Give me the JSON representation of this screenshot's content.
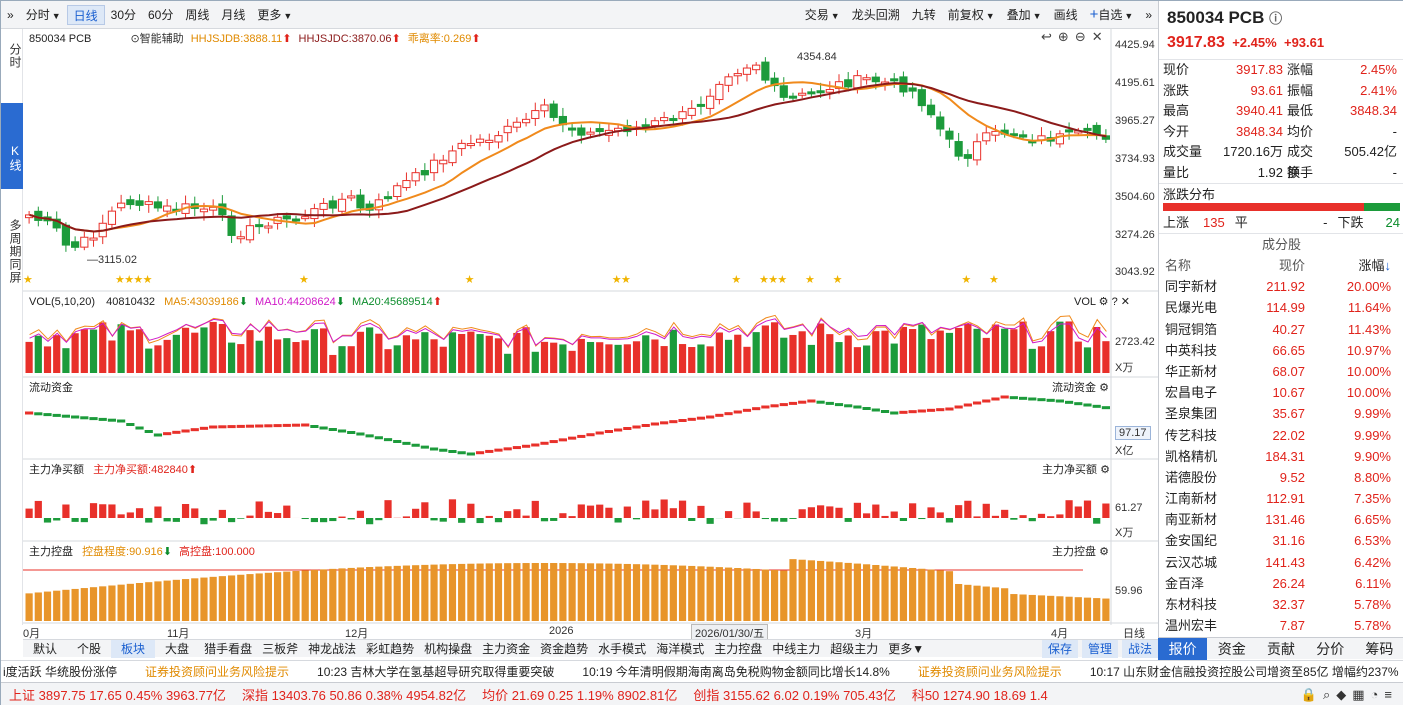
{
  "toolbar": {
    "left": [
      "»",
      "分时",
      "日线",
      "30分",
      "60分",
      "周线",
      "月线",
      "更多"
    ],
    "right": [
      "交易",
      "龙头回溯",
      "九转",
      "前复权",
      "叠加",
      "画线",
      "自选",
      "»"
    ]
  },
  "lefttabs": [
    "分时",
    "K线",
    "多周期同屏"
  ],
  "main": {
    "code": "850034 PCB",
    "assist": "智能辅助",
    "hhjsjdb": "HHJSJDB:3888.11",
    "hhjsjdc": "HHJSJDC:3870.06",
    "deviation": "乖离率:0.269",
    "yticks": [
      "4425.94",
      "4195.61",
      "3965.27",
      "3734.93",
      "3504.60",
      "3274.26",
      "3043.92"
    ],
    "high_label": "4354.84",
    "low_label": "3115.02"
  },
  "vol": {
    "title": "VOL(5,10,20)",
    "value": "40810432",
    "ma5": "MA5:43039186",
    "ma10": "MA10:44208624",
    "ma20": "MA20:45689514",
    "tag": "VOL",
    "ytick": "2723.42",
    "unit": "X万"
  },
  "flow": {
    "title": "流动资金",
    "tag": "流动资金",
    "ytick": "97.17",
    "unit": "X亿"
  },
  "net": {
    "title": "主力净买额",
    "value": "主力净买额:482840",
    "tag": "主力净买额",
    "ytick": "61.27",
    "unit": "X万"
  },
  "ctrl": {
    "title": "主力控盘",
    "degree": "控盘程度:90.916",
    "high": "高控盘:100.000",
    "tag": "主力控盘",
    "ytick": "59.96"
  },
  "dates": [
    "0月",
    "11月",
    "12月",
    "2026",
    "2026/01/30/五",
    "3月",
    "4月"
  ],
  "period": "日线",
  "bottomtabs": [
    "默认",
    "个股",
    "板块",
    "大盘",
    "猎手看盘",
    "三板斧",
    "神龙战法",
    "彩虹趋势",
    "机构操盘",
    "主力资金",
    "资金趋势",
    "水手模式",
    "海洋模式",
    "主力控盘",
    "中线主力",
    "超级主力",
    "更多"
  ],
  "bottomright": [
    "保存",
    "管理",
    "战法"
  ],
  "ticker": [
    "i度活跃 华统股份涨停",
    "证券投资顾问业务风险提示",
    "10:23 吉林大学在氢基超导研究取得重要突破",
    "10:19 今年清明假期海南离岛免税购物金额同比增长14.8%",
    "证券投资顾问业务风险提示",
    "10:17 山东财金信融投资控股公司增资至85亿 增幅约237%"
  ],
  "indices": [
    {
      "name": "上证",
      "v": "3897.75",
      "c": "17.65",
      "p": "0.45%",
      "a": "3963.77亿"
    },
    {
      "name": "深指",
      "v": "13403.76",
      "c": "50.86",
      "p": "0.38%",
      "a": "4954.82亿"
    },
    {
      "name": "均价",
      "v": "21.69",
      "c": "0.25",
      "p": "1.19%",
      "a": "8902.81亿"
    },
    {
      "name": "创指",
      "v": "3155.62",
      "c": "6.02",
      "p": "0.19%",
      "a": "705.43亿"
    },
    {
      "name": "科50",
      "v": "1274.90",
      "c": "18.69",
      "p": "1.4"
    }
  ],
  "right": {
    "title": "850034 PCB",
    "price": "3917.83",
    "chg_pct": "+2.45%",
    "chg": "+93.61",
    "quotes": [
      [
        "现价",
        "3917.83",
        "涨幅",
        "2.45%"
      ],
      [
        "涨跌",
        "93.61",
        "振幅",
        "2.41%"
      ],
      [
        "最高",
        "3940.41",
        "最低",
        "3848.34"
      ],
      [
        "今开",
        "3848.34",
        "均价",
        "-"
      ],
      [
        "成交量",
        "1720.16万",
        "成交额",
        "505.42亿"
      ],
      [
        "量比",
        "1.92",
        "换手",
        "-"
      ]
    ],
    "dist_title": "涨跌分布",
    "up_label": "上涨",
    "up": "135",
    "flat_label": "平",
    "flat": "-",
    "down_label": "下跌",
    "down": "24",
    "comp_title": "成分股",
    "col_name": "名称",
    "col_price": "现价",
    "col_chg": "涨幅",
    "stocks": [
      [
        "同宇新材",
        "211.92",
        "20.00%"
      ],
      [
        "民爆光电",
        "114.99",
        "11.64%"
      ],
      [
        "铜冠铜箔",
        "40.27",
        "11.43%"
      ],
      [
        "中英科技",
        "66.65",
        "10.97%"
      ],
      [
        "华正新材",
        "68.07",
        "10.00%"
      ],
      [
        "宏昌电子",
        "10.67",
        "10.00%"
      ],
      [
        "圣泉集团",
        "35.67",
        "9.99%"
      ],
      [
        "传艺科技",
        "22.02",
        "9.99%"
      ],
      [
        "凯格精机",
        "184.31",
        "9.90%"
      ],
      [
        "诺德股份",
        "9.52",
        "8.80%"
      ],
      [
        "江南新材",
        "112.91",
        "7.35%"
      ],
      [
        "南亚新材",
        "131.46",
        "6.65%"
      ],
      [
        "金安国纪",
        "31.16",
        "6.53%"
      ],
      [
        "云汉芯城",
        "141.43",
        "6.42%"
      ],
      [
        "金百泽",
        "26.24",
        "6.11%"
      ],
      [
        "东材科技",
        "32.37",
        "5.78%"
      ],
      [
        "温州宏丰",
        "7.87",
        "5.78%"
      ]
    ],
    "tabs": [
      "报价",
      "资金",
      "贡献",
      "分价",
      "筹码"
    ]
  },
  "colors": {
    "up": "#e8302a",
    "down": "#1c9b3b",
    "ma_orange": "#f08a1c",
    "ma_dark": "#8b1a1a",
    "ctrl": "#e8952a",
    "accent": "#2a6bd1"
  }
}
